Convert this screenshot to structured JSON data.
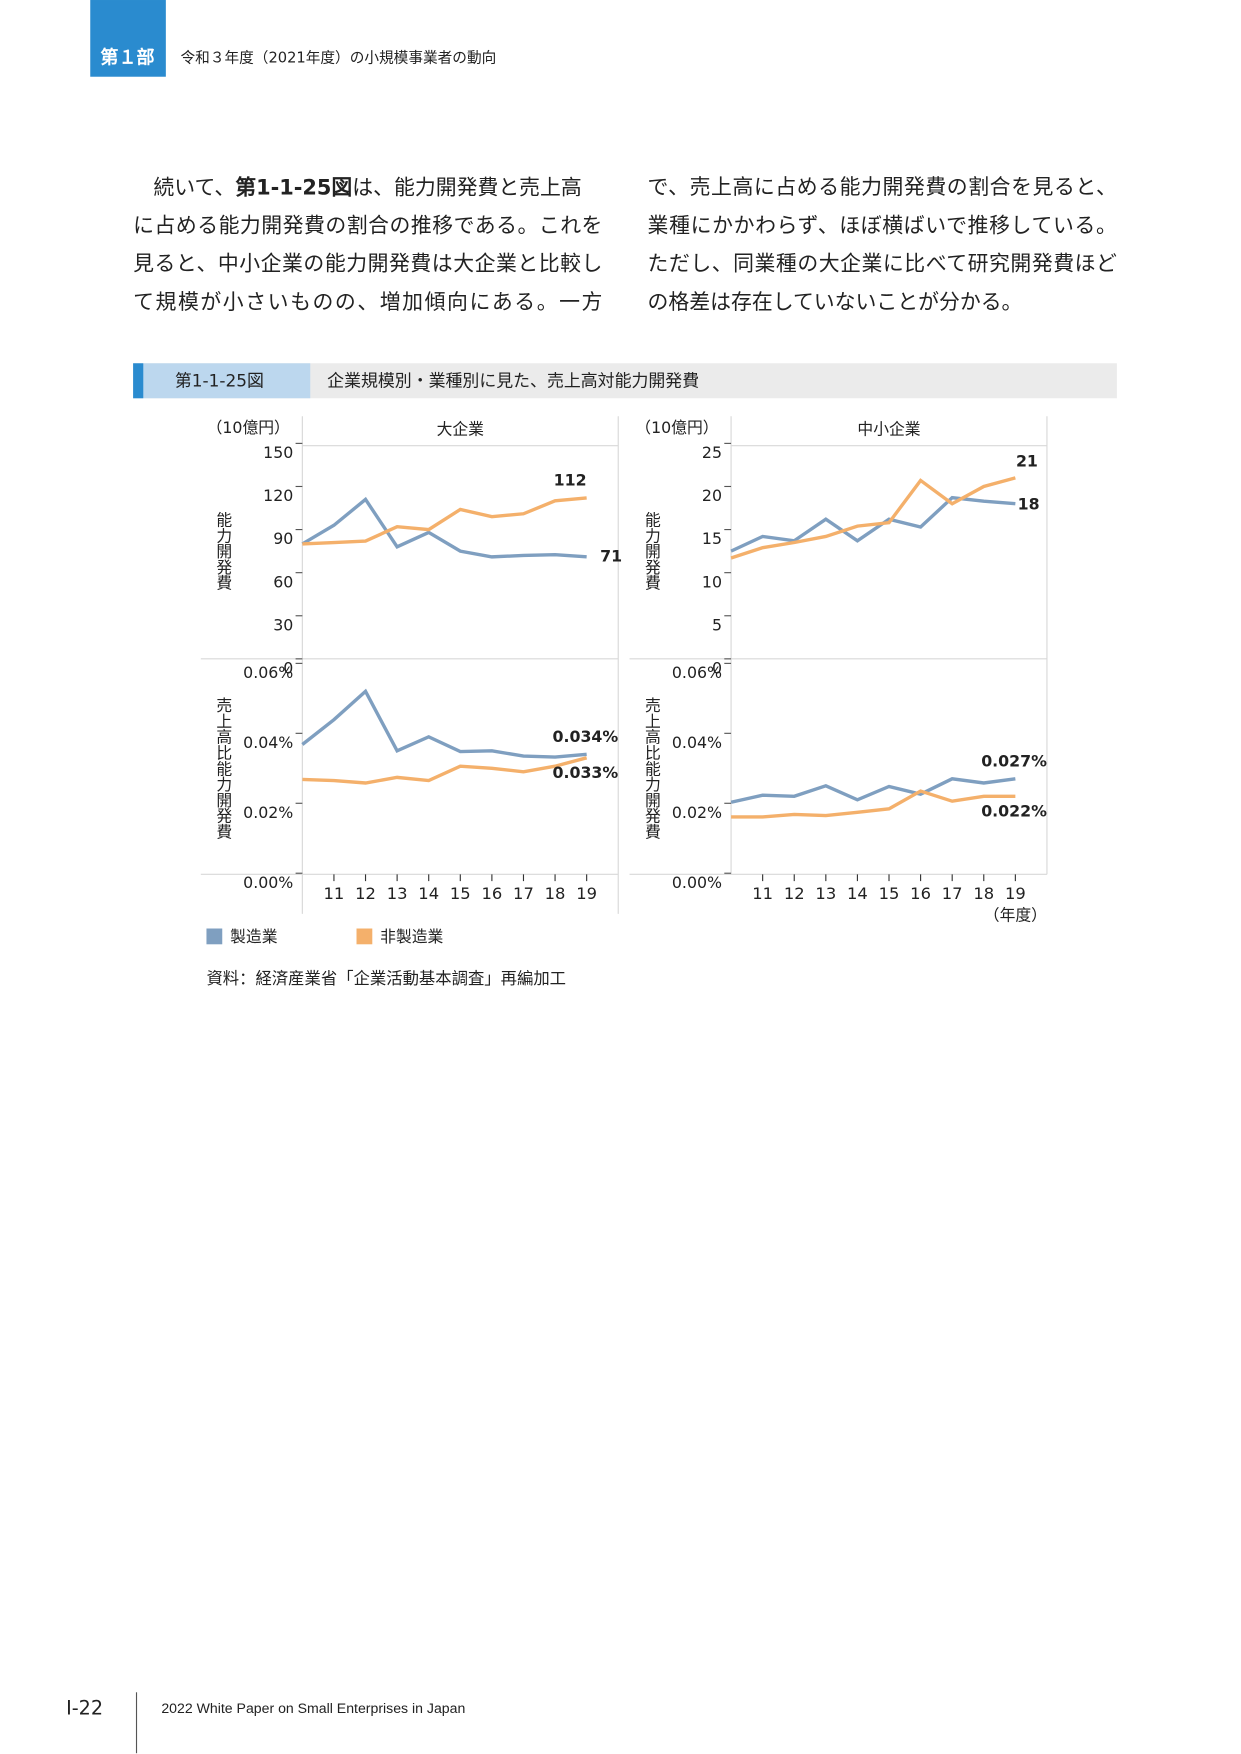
{
  "header": {
    "part": "第１部",
    "title": "令和３年度（2021年度）の小規模事業者の動向"
  },
  "body": {
    "lead": "続いて、",
    "ref": "第1-1-25図",
    "lines": [
      "は、能力開発費と売上高",
      "に占める能力開発費の割合の推移である。これを",
      "見ると、中小企業の能力開発費は大企業と比較し",
      "て規模が小さいものの、増加傾向にある。一方",
      "で、売上高に占める能力開発費の割合を見ると、",
      "業種にかかわらず、ほぼ横ばいで推移している。",
      "ただし、同業種の大企業に比べて研究開発費ほど",
      "の格差は存在していないことが分かる。"
    ]
  },
  "figure": {
    "number": "第1-1-25図",
    "title": "企業規模別・業種別に見た、売上高対能力開発費",
    "source": "資料：経済産業省「企業活動基本調査」再編加工",
    "x_unit": "（年度）"
  },
  "chart_data": [
    {
      "type": "line",
      "title": "大企業",
      "y_unit": "（10億円）",
      "ylabel": "能力開発費",
      "ylim": [
        0,
        150
      ],
      "yticks": [
        0,
        30,
        60,
        90,
        120,
        150
      ],
      "series": [
        {
          "color": "#7f9fc0",
          "values": [
            80,
            93,
            111,
            78,
            88,
            75,
            71,
            72,
            72.5,
            71
          ]
        },
        {
          "color": "#f4b06b",
          "values": [
            80,
            81,
            82,
            92,
            90,
            104,
            99,
            101,
            110,
            112
          ]
        }
      ]
    },
    {
      "type": "line",
      "title": "中小企業",
      "y_unit": "（10億円）",
      "ylabel": "能力開発費",
      "ylim": [
        0,
        25
      ],
      "yticks": [
        0,
        5,
        10,
        15,
        20,
        25
      ],
      "series": [
        {
          "color": "#7f9fc0",
          "values": [
            12.5,
            14.2,
            13.7,
            16.2,
            13.7,
            16.2,
            15.3,
            18.7,
            18.3,
            18
          ]
        },
        {
          "color": "#f4b06b",
          "values": [
            11.7,
            12.9,
            13.5,
            14.2,
            15.4,
            15.8,
            20.7,
            18,
            20,
            21
          ]
        }
      ]
    },
    {
      "type": "line",
      "ylabel": "売上高比能力開発費",
      "categories": [
        null,
        "11",
        "12",
        "13",
        "14",
        "15",
        "16",
        "17",
        "18",
        "19"
      ],
      "ylim": [
        0,
        0.06
      ],
      "yticks": [
        {
          "value": 0,
          "label": "0.00%"
        },
        {
          "value": 0.02,
          "label": "0.02%"
        },
        {
          "value": 0.04,
          "label": "0.04%"
        },
        {
          "value": 0.06,
          "label": "0.06%"
        }
      ],
      "series": [
        {
          "name": "製造業",
          "color": "#7f9fc0",
          "values": [
            0.0368,
            0.0439,
            0.052,
            0.035,
            0.039,
            0.0348,
            0.035,
            0.0335,
            0.0332,
            0.034
          ],
          "value_labels": [
            null,
            null,
            null,
            null,
            null,
            null,
            null,
            null,
            null,
            "0.034%"
          ]
        },
        {
          "name": "非製造業",
          "color": "#f4b06b",
          "values": [
            0.0268,
            0.0265,
            0.0258,
            0.0274,
            0.0265,
            0.0306,
            0.03,
            0.029,
            0.0306,
            0.033
          ],
          "value_labels": [
            null,
            null,
            null,
            null,
            null,
            null,
            null,
            null,
            null,
            "0.033%"
          ]
        }
      ]
    },
    {
      "type": "line",
      "ylabel": "売上高比能力開発費",
      "categories": [
        null,
        "11",
        "12",
        "13",
        "14",
        "15",
        "16",
        "17",
        "18",
        "19"
      ],
      "ylim": [
        0,
        0.06
      ],
      "yticks": [
        {
          "value": 0,
          "label": "0.00%"
        },
        {
          "value": 0.02,
          "label": "0.02%"
        },
        {
          "value": 0.04,
          "label": "0.04%"
        },
        {
          "value": 0.06,
          "label": "0.06%"
        }
      ],
      "series": [
        {
          "color": "#7f9fc0",
          "values": [
            0.0203,
            0.0223,
            0.022,
            0.025,
            0.021,
            0.0248,
            0.0226,
            0.027,
            0.0258,
            0.027
          ],
          "value_labels": [
            null,
            null,
            null,
            null,
            null,
            null,
            null,
            null,
            null,
            "0.027%"
          ]
        },
        {
          "color": "#f4b06b",
          "values": [
            0.0161,
            0.0161,
            0.0168,
            0.0165,
            0.0174,
            0.0184,
            0.0235,
            0.0206,
            0.022,
            0.022
          ],
          "value_labels": [
            null,
            null,
            null,
            null,
            null,
            null,
            null,
            null,
            null,
            "0.022%"
          ]
        }
      ]
    }
  ],
  "footer": {
    "page": "I-22",
    "publication": "2022 White Paper on Small Enterprises in Japan"
  }
}
